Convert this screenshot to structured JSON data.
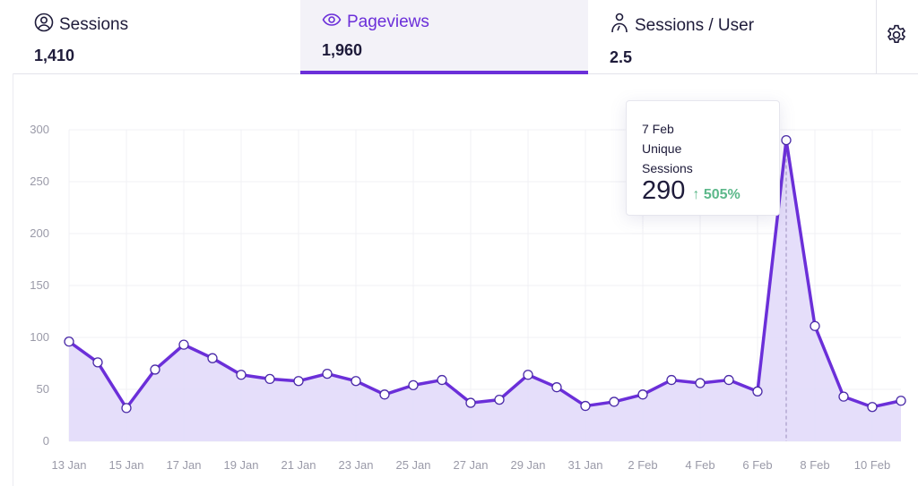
{
  "tabs": [
    {
      "label": "Sessions",
      "value": "1,410",
      "icon": "user-circle-icon"
    },
    {
      "label": "Pageviews",
      "value": "1,960",
      "icon": "eye-icon",
      "active": true
    },
    {
      "label": "Sessions / User",
      "value": "2.5",
      "icon": "person-icon"
    }
  ],
  "settings_icon": "gear-icon",
  "colors": {
    "accent": "#6b2fd9",
    "fill": "#e2daf9",
    "positive": "#5cb88a"
  },
  "tooltip": {
    "date": "7 Feb",
    "label1": "Unique",
    "label2": "Sessions",
    "value": "290",
    "change": "505%"
  },
  "chart_data": {
    "type": "area",
    "title": "",
    "xlabel": "",
    "ylabel": "",
    "ylim": [
      0,
      300
    ],
    "yticks": [
      "0",
      "50",
      "100",
      "150",
      "200",
      "250",
      "300"
    ],
    "xticks": [
      "13 Jan",
      "15 Jan",
      "17 Jan",
      "19 Jan",
      "21 Jan",
      "23 Jan",
      "25 Jan",
      "27 Jan",
      "29 Jan",
      "31 Jan",
      "2 Feb",
      "4 Feb",
      "6 Feb",
      "8 Feb",
      "10 Feb"
    ],
    "x": [
      "13 Jan",
      "14 Jan",
      "15 Jan",
      "16 Jan",
      "17 Jan",
      "18 Jan",
      "19 Jan",
      "20 Jan",
      "21 Jan",
      "22 Jan",
      "23 Jan",
      "24 Jan",
      "25 Jan",
      "26 Jan",
      "27 Jan",
      "28 Jan",
      "29 Jan",
      "30 Jan",
      "31 Jan",
      "1 Feb",
      "2 Feb",
      "3 Feb",
      "4 Feb",
      "5 Feb",
      "6 Feb",
      "7 Feb",
      "8 Feb",
      "9 Feb",
      "10 Feb",
      "11 Feb"
    ],
    "series": [
      {
        "name": "Unique Sessions",
        "values": [
          96,
          76,
          32,
          69,
          93,
          80,
          64,
          60,
          58,
          65,
          58,
          45,
          54,
          59,
          37,
          40,
          64,
          52,
          34,
          38,
          45,
          59,
          56,
          59,
          48,
          290,
          111,
          43,
          33,
          39
        ]
      }
    ],
    "grid": true,
    "highlight": "7 Feb"
  }
}
